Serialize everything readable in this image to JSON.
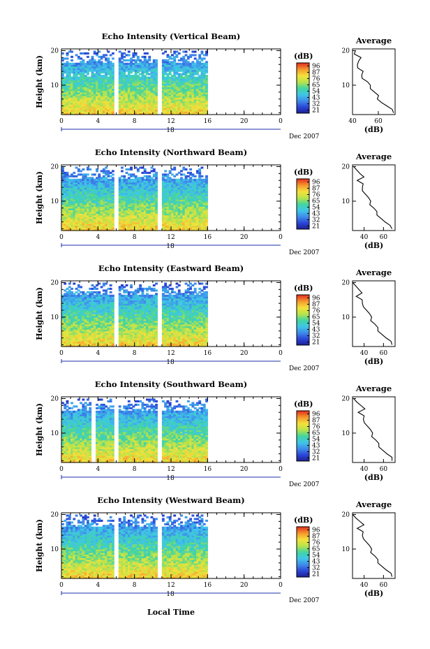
{
  "figure": {
    "xlabel": "Local Time",
    "ylabel": "Height (km)",
    "date_label": "Dec 2007",
    "day_label": "18",
    "colorbar_unit": "(dB)",
    "colorbar_ticks": [
      "96",
      "87",
      "76",
      "65",
      "54",
      "43",
      "32",
      "21"
    ],
    "profile_title": "Average",
    "profile_xlabel": "(dB)"
  },
  "chart_data": [
    {
      "type": "heatmap",
      "title": "Echo Intensity (Vertical Beam)",
      "xlabel": "Local Time",
      "ylabel": "Height (km)",
      "x_ticks": [
        "0",
        "4",
        "8",
        "12",
        "16",
        "20",
        "0"
      ],
      "y_ticks": [
        "10",
        "20"
      ],
      "xlim": [
        0,
        24
      ],
      "ylim": [
        1.5,
        20.5
      ],
      "data_x_range": [
        0,
        16
      ],
      "gaps": [
        6.0,
        10.8
      ],
      "color_range_db": [
        21,
        96
      ],
      "average_profile": {
        "title": "Average",
        "xlabel": "(dB)",
        "x_ticks": [
          "40",
          "60"
        ],
        "xlim": [
          40,
          73
        ],
        "y_ticks": [
          "10",
          "20"
        ],
        "height_km": [
          20,
          19,
          18,
          17,
          16,
          15,
          14,
          13,
          12,
          11,
          10,
          9,
          8,
          7,
          6,
          5,
          4,
          3,
          2
        ],
        "mean_db": [
          44,
          42,
          46,
          43,
          45,
          44,
          47,
          49,
          48,
          51,
          52,
          55,
          57,
          59,
          61,
          63,
          66,
          69,
          73
        ]
      }
    },
    {
      "type": "heatmap",
      "title": "Echo Intensity (Northward Beam)",
      "xlabel": "Local Time",
      "ylabel": "Height (km)",
      "x_ticks": [
        "0",
        "4",
        "8",
        "12",
        "16",
        "20",
        "0"
      ],
      "y_ticks": [
        "10",
        "20"
      ],
      "xlim": [
        0,
        24
      ],
      "ylim": [
        1.5,
        20.5
      ],
      "data_x_range": [
        0,
        16
      ],
      "gaps": [
        6.0,
        10.8
      ],
      "color_range_db": [
        21,
        96
      ],
      "average_profile": {
        "title": "Average",
        "xlabel": "(dB)",
        "x_ticks": [
          "40",
          "60"
        ],
        "xlim": [
          28,
          72
        ],
        "y_ticks": [
          "10",
          "20"
        ],
        "height_km": [
          20,
          19,
          18,
          17,
          16,
          15,
          14,
          13,
          12,
          11,
          10,
          9,
          8,
          7,
          6,
          5,
          4,
          3,
          2
        ],
        "mean_db": [
          31,
          33,
          35,
          38,
          34,
          39,
          37,
          40,
          42,
          44,
          45,
          47,
          50,
          52,
          55,
          58,
          61,
          65,
          70
        ]
      }
    },
    {
      "type": "heatmap",
      "title": "Echo Intensity (Eastward Beam)",
      "xlabel": "Local Time",
      "ylabel": "Height (km)",
      "x_ticks": [
        "0",
        "4",
        "8",
        "12",
        "16",
        "20",
        "0"
      ],
      "y_ticks": [
        "10",
        "20"
      ],
      "xlim": [
        0,
        24
      ],
      "ylim": [
        1.5,
        20.5
      ],
      "data_x_range": [
        0,
        16
      ],
      "gaps": [
        6.0,
        10.8
      ],
      "color_range_db": [
        21,
        96
      ],
      "average_profile": {
        "title": "Average",
        "xlabel": "(dB)",
        "x_ticks": [
          "40",
          "60"
        ],
        "xlim": [
          28,
          72
        ],
        "y_ticks": [
          "10",
          "20"
        ],
        "height_km": [
          20,
          19,
          18,
          17,
          16,
          15,
          14,
          13,
          12,
          11,
          10,
          9,
          8,
          7,
          6,
          5,
          4,
          3,
          2
        ],
        "mean_db": [
          30,
          32,
          34,
          36,
          33,
          38,
          37,
          41,
          43,
          45,
          46,
          48,
          51,
          53,
          56,
          59,
          62,
          66,
          70
        ]
      }
    },
    {
      "type": "heatmap",
      "title": "Echo Intensity (Southward Beam)",
      "xlabel": "Local Time",
      "ylabel": "Height (km)",
      "x_ticks": [
        "0",
        "4",
        "8",
        "12",
        "16",
        "20",
        "0"
      ],
      "y_ticks": [
        "10",
        "20"
      ],
      "xlim": [
        0,
        24
      ],
      "ylim": [
        1.5,
        20.5
      ],
      "data_x_range": [
        0,
        16
      ],
      "gaps": [
        3.5,
        6.0,
        10.8
      ],
      "color_range_db": [
        21,
        96
      ],
      "average_profile": {
        "title": "Average",
        "xlabel": "(dB)",
        "x_ticks": [
          "40",
          "60"
        ],
        "xlim": [
          28,
          72
        ],
        "y_ticks": [
          "10",
          "20"
        ],
        "height_km": [
          20,
          19,
          18,
          17,
          16,
          15,
          14,
          13,
          12,
          11,
          10,
          9,
          8,
          7,
          6,
          5,
          4,
          3,
          2
        ],
        "mean_db": [
          31,
          33,
          36,
          39,
          35,
          40,
          38,
          42,
          44,
          46,
          47,
          49,
          52,
          54,
          57,
          60,
          63,
          67,
          70
        ]
      }
    },
    {
      "type": "heatmap",
      "title": "Echo Intensity (Westward Beam)",
      "xlabel": "Local Time",
      "ylabel": "Height (km)",
      "x_ticks": [
        "0",
        "4",
        "8",
        "12",
        "16",
        "20",
        "0"
      ],
      "y_ticks": [
        "10",
        "20"
      ],
      "xlim": [
        0,
        24
      ],
      "ylim": [
        1.5,
        20.5
      ],
      "data_x_range": [
        0,
        16
      ],
      "gaps": [
        6.0,
        10.8
      ],
      "color_range_db": [
        21,
        96
      ],
      "average_profile": {
        "title": "Average",
        "xlabel": "(dB)",
        "x_ticks": [
          "40",
          "60"
        ],
        "xlim": [
          28,
          72
        ],
        "y_ticks": [
          "10",
          "20"
        ],
        "height_km": [
          20,
          19,
          18,
          17,
          16,
          15,
          14,
          13,
          12,
          11,
          10,
          9,
          8,
          7,
          6,
          5,
          4,
          3,
          2
        ],
        "mean_db": [
          30,
          32,
          35,
          38,
          34,
          39,
          37,
          41,
          43,
          45,
          46,
          48,
          51,
          53,
          56,
          59,
          62,
          66,
          70
        ]
      }
    }
  ],
  "colors": {
    "colormap": [
      "#1c1f8f",
      "#2a44d6",
      "#3f8bea",
      "#3fc7e8",
      "#42d4a0",
      "#b9e34a",
      "#f4e23c",
      "#f59a2c",
      "#e3321f"
    ]
  }
}
